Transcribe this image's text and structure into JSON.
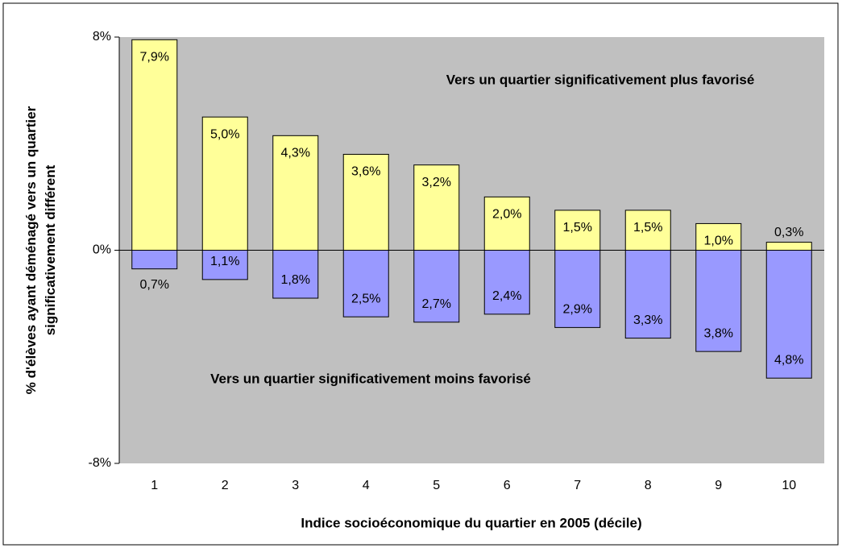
{
  "chart_data": {
    "type": "bar",
    "x_label": "Indice socioéconomique du quartier en 2005 (décile)",
    "y_label": "% d'élèves ayant déménagé vers un quartier significativement différent",
    "categories": [
      "1",
      "2",
      "3",
      "4",
      "5",
      "6",
      "7",
      "8",
      "9",
      "10"
    ],
    "series": [
      {
        "name": "Vers un quartier significativement plus favorisé",
        "color": "#ffff99",
        "values": [
          7.9,
          5.0,
          4.3,
          3.6,
          3.2,
          2.0,
          1.5,
          1.5,
          1.0,
          0.3
        ],
        "value_labels": [
          "7,9%",
          "5,0%",
          "4,3%",
          "3,6%",
          "3,2%",
          "2,0%",
          "1,5%",
          "1,5%",
          "1,0%",
          "0,3%"
        ]
      },
      {
        "name": "Vers un quartier significativement moins favorisé",
        "color": "#9999ff",
        "values": [
          -0.7,
          -1.1,
          -1.8,
          -2.5,
          -2.7,
          -2.4,
          -2.9,
          -3.3,
          -3.8,
          -4.8
        ],
        "value_labels": [
          "0,7%",
          "1,1%",
          "1,8%",
          "2,5%",
          "2,7%",
          "2,4%",
          "2,9%",
          "3,3%",
          "3,8%",
          "4,8%"
        ]
      }
    ],
    "ylim": [
      -8,
      8
    ],
    "yticks": [
      {
        "value": -8,
        "label": "-8%"
      },
      {
        "value": 0,
        "label": "0%"
      },
      {
        "value": 8,
        "label": "8%"
      }
    ],
    "background": "#c0c0c0"
  }
}
